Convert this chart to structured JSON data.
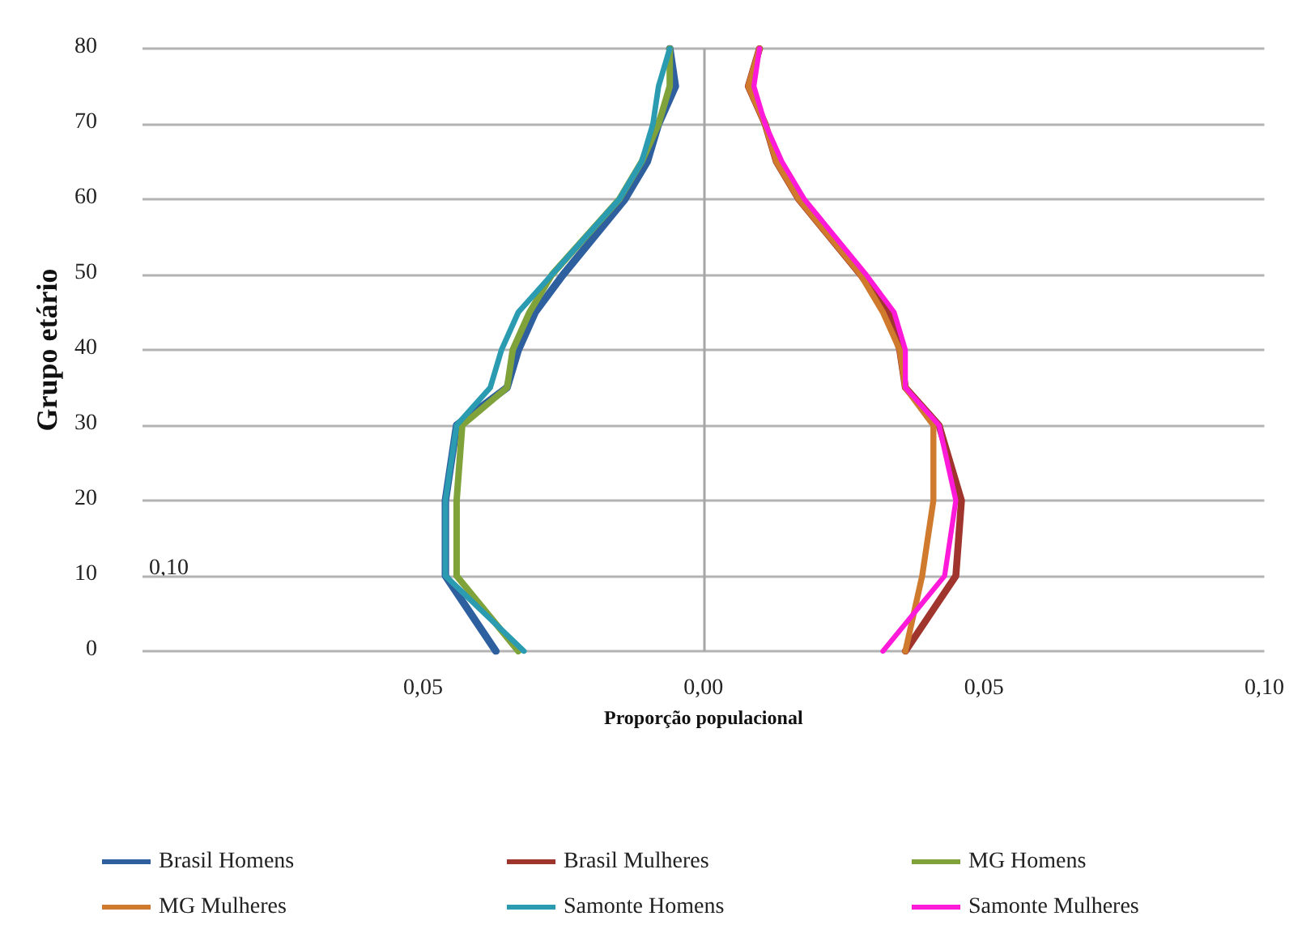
{
  "chart_data": {
    "type": "line",
    "xlabel": "Proporção populacional",
    "ylabel": "Grupo etário",
    "xlim": [
      -0.1,
      0.1
    ],
    "xticks": [
      {
        "value": -0.05,
        "label": "0,05"
      },
      {
        "value": 0,
        "label": "0,00"
      },
      {
        "value": 0.05,
        "label": "0,05"
      },
      {
        "value": 0.1,
        "label": "0,10"
      }
    ],
    "ylim": [
      0,
      80
    ],
    "yticks": [
      0,
      10,
      20,
      30,
      40,
      50,
      60,
      70,
      80
    ],
    "grid": "y",
    "legend": "bottom",
    "marker": "none",
    "line_style": "solid",
    "ref_lines": [
      {
        "axis": "x",
        "value": 0,
        "color": "#a6a6a6"
      }
    ],
    "annotations": [
      "0,10"
    ],
    "series": [
      {
        "name": "Brasil Homens",
        "color": "#2e5f9e",
        "x": [
          -0.037,
          -0.046,
          -0.046,
          -0.044,
          -0.035,
          -0.033,
          -0.03,
          -0.025,
          -0.014,
          -0.01,
          -0.008,
          -0.005,
          -0.006
        ],
        "values": [
          0,
          10,
          20,
          30,
          35,
          40,
          45,
          50,
          60,
          65,
          70,
          75,
          80
        ]
      },
      {
        "name": "Brasil Mulheres",
        "color": "#a0352e",
        "x": [
          0.036,
          0.045,
          0.046,
          0.042,
          0.036,
          0.035,
          0.033,
          0.028,
          0.017,
          0.013,
          0.011,
          0.008,
          0.01
        ],
        "values": [
          0,
          10,
          20,
          30,
          35,
          40,
          45,
          50,
          60,
          65,
          70,
          75,
          80
        ]
      },
      {
        "name": "MG Homens",
        "color": "#7fa33a",
        "x": [
          -0.033,
          -0.044,
          -0.044,
          -0.043,
          -0.035,
          -0.034,
          -0.031,
          -0.027,
          -0.015,
          -0.011,
          -0.008,
          -0.006,
          -0.006
        ],
        "values": [
          0,
          10,
          20,
          30,
          35,
          40,
          45,
          50,
          60,
          65,
          70,
          75,
          80
        ]
      },
      {
        "name": "MG Mulheres",
        "color": "#d07a2e",
        "x": [
          0.036,
          0.039,
          0.041,
          0.041,
          0.036,
          0.035,
          0.032,
          0.028,
          0.017,
          0.013,
          0.011,
          0.008,
          0.01
        ],
        "values": [
          0,
          10,
          20,
          30,
          35,
          40,
          45,
          50,
          60,
          65,
          70,
          75,
          80
        ]
      },
      {
        "name": "Samonte Homens",
        "color": "#2a9bb0",
        "x": [
          -0.032,
          -0.046,
          -0.046,
          -0.044,
          -0.038,
          -0.036,
          -0.033,
          -0.027,
          -0.015,
          -0.011,
          -0.009,
          -0.008,
          -0.006
        ],
        "values": [
          0,
          10,
          20,
          30,
          35,
          40,
          45,
          50,
          60,
          65,
          70,
          75,
          80
        ]
      },
      {
        "name": "Samonte Mulheres",
        "color": "#ff1ad9",
        "x": [
          0.032,
          0.043,
          0.045,
          0.042,
          0.036,
          0.036,
          0.034,
          0.029,
          0.018,
          0.014,
          0.011,
          0.009,
          0.01
        ],
        "values": [
          0,
          10,
          20,
          30,
          35,
          40,
          45,
          50,
          60,
          65,
          70,
          75,
          80
        ]
      }
    ]
  }
}
